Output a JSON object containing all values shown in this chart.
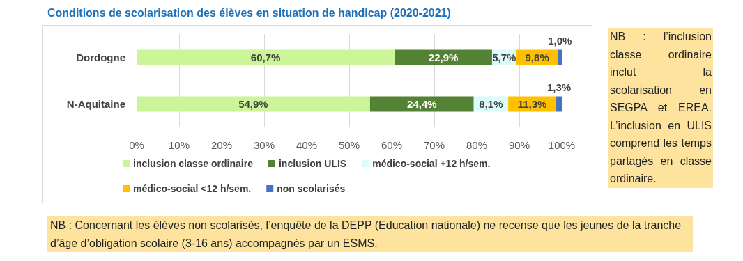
{
  "chart_data": {
    "type": "bar",
    "orientation": "horizontal",
    "stacked": true,
    "title": "Conditions de scolarisation des élèves en situation de handicap (2020-2021)",
    "categories": [
      "Dordogne",
      "N-Aquitaine"
    ],
    "series": [
      {
        "name": "inclusion classe ordinaire",
        "color": "#ccf59a",
        "values": [
          60.7,
          54.9
        ],
        "value_labels": [
          "60,7%",
          "54,9%"
        ]
      },
      {
        "name": "inclusion ULIS",
        "color": "#548235",
        "values": [
          22.9,
          24.4
        ],
        "value_labels": [
          "22,9%",
          "24,4%"
        ]
      },
      {
        "name": "médico-social +12 h/sem.",
        "color": "#dcfbfb",
        "values": [
          5.7,
          8.1
        ],
        "value_labels": [
          "5,7%",
          "8,1%"
        ]
      },
      {
        "name": "médico-social <12 h/sem.",
        "color": "#ffc000",
        "values": [
          9.8,
          11.3
        ],
        "value_labels": [
          "9,8%",
          "11,3%"
        ]
      },
      {
        "name": "non scolarisés",
        "color": "#4472c4",
        "values": [
          1.0,
          1.3
        ],
        "value_labels": [
          "1,0%",
          "1,3%"
        ]
      }
    ],
    "xlim": [
      0,
      100
    ],
    "xticks": [
      {
        "value": 0,
        "label": "0%"
      },
      {
        "value": 10,
        "label": "10%"
      },
      {
        "value": 20,
        "label": "20%"
      },
      {
        "value": 30,
        "label": "30%"
      },
      {
        "value": 40,
        "label": "40%"
      },
      {
        "value": 50,
        "label": "50%"
      },
      {
        "value": 60,
        "label": "60%"
      },
      {
        "value": 70,
        "label": "70%"
      },
      {
        "value": 80,
        "label": "80%"
      },
      {
        "value": 90,
        "label": "90%"
      },
      {
        "value": 100,
        "label": "100%"
      }
    ],
    "grid": "x",
    "legend": "bottom",
    "annotations": [
      "NB : l’inclusion classe ordinaire inclut la scolarisation en SEGPA et EREA. L’inclusion en ULIS comprend les temps partagés en classe ordinaire.",
      "NB : Concernant les élèves non scolarisés, l’enquête de la DEPP (Education nationale) ne recense que les jeunes de la tranche d’âge d’obligation scolaire (3-16 ans) accompagnés par un ESMS."
    ]
  }
}
